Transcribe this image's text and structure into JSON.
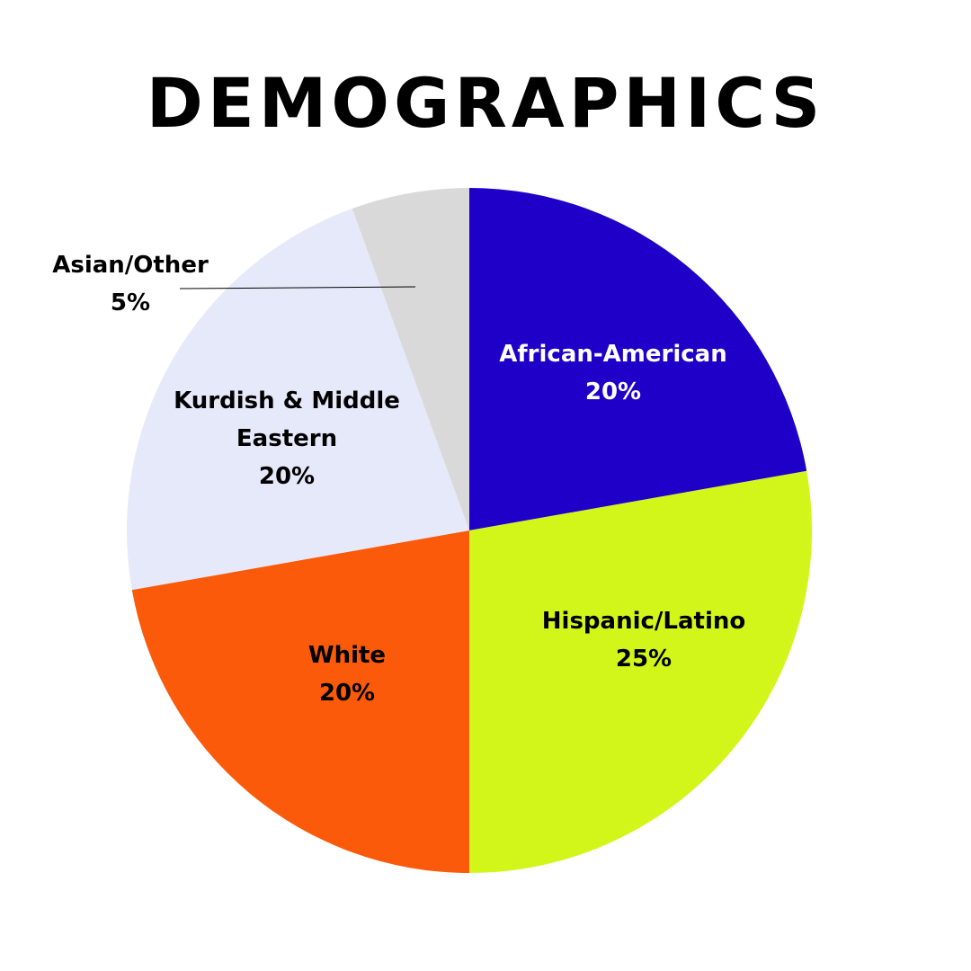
{
  "chart_data": {
    "type": "pie",
    "title": "DEMOGRAPHICS",
    "categories": [
      "African-American",
      "Hispanic/Latino",
      "White",
      "Kurdish & Middle Eastern",
      "Asian/Other"
    ],
    "values": [
      20,
      25,
      20,
      20,
      5
    ],
    "value_labels": [
      "20%",
      "25%",
      "20%",
      "20%",
      "5%"
    ],
    "colors": [
      "#1e00c8",
      "#d2f51a",
      "#fa5a0a",
      "#e6e9fa",
      "#d9d9d9"
    ]
  }
}
